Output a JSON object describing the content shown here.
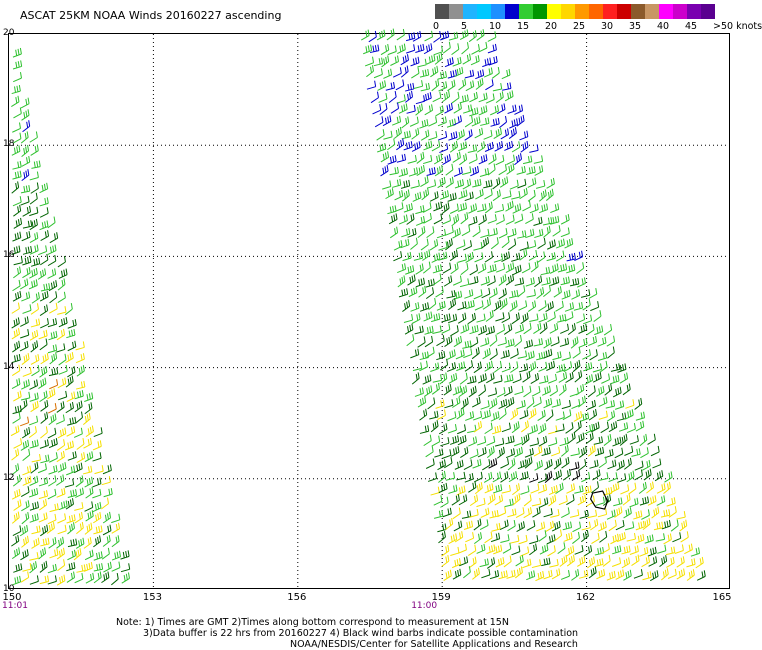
{
  "title": "ASCAT 25KM NOAA Winds 20160227 ascending",
  "legend": {
    "labels": [
      "0",
      "5",
      "10",
      "15",
      "20",
      "25",
      "30",
      "35",
      "40",
      "45",
      ">50 knots"
    ],
    "colors": [
      "#505050",
      "#909090",
      "#1fb4ff",
      "#00c8ff",
      "#1e90ff",
      "#0000cd",
      "#32cd32",
      "#009600",
      "#ffff00",
      "#ffd700",
      "#ff9900",
      "#ff6600",
      "#ff2020",
      "#cc0000",
      "#8b5a2b",
      "#c89664",
      "#ff00ff",
      "#cc00cc",
      "#7a00b0",
      "#5a0090"
    ]
  },
  "map": {
    "lon_range": [
      150,
      165
    ],
    "lat_range": [
      10,
      20
    ],
    "x_ticks": [
      "150",
      "153",
      "156",
      "159",
      "162",
      "165"
    ],
    "y_ticks": [
      "20",
      "18",
      "16",
      "14",
      "12",
      "10"
    ],
    "time_labels": [
      {
        "text": "11:01",
        "lon": 150
      },
      {
        "text": "11:00",
        "lon": 159
      }
    ],
    "barb_colors": {
      "blue": "#0000cd",
      "green": "#2fc12f",
      "dark_green": "#006400",
      "yellow": "#f5e000",
      "orange": "#d87000",
      "black": "#000000"
    }
  },
  "notes": [
    "Note: 1) Times are GMT 2)Times along bottom correspond to measurement at 15N",
    "3)Data buffer is 22 hrs from 20160227 4) Black wind barbs indicate possible contamination",
    "NOAA/NESDIS/Center for Satellite Applications and Research"
  ]
}
